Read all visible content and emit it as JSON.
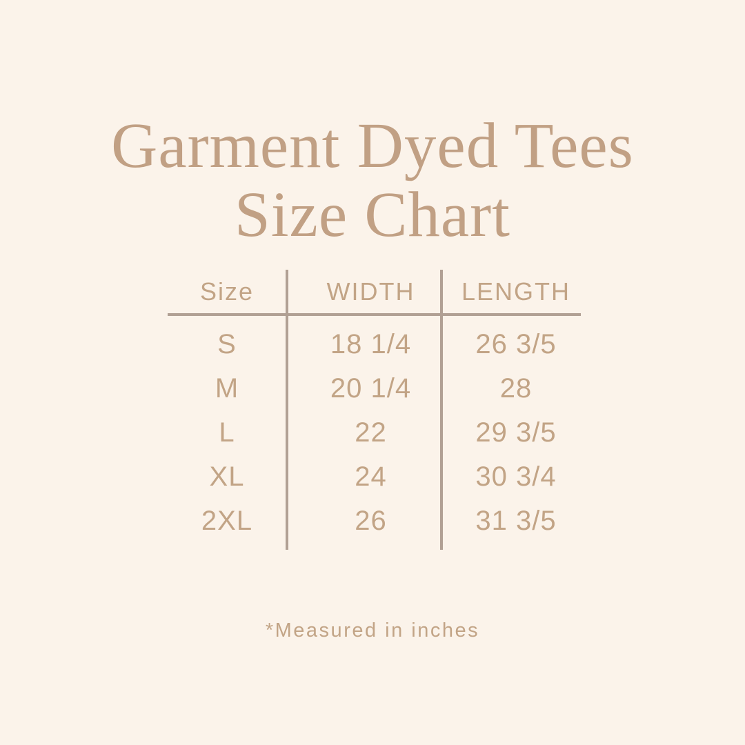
{
  "colors": {
    "background": "#fbf3ea",
    "title_text": "#c1a084",
    "table_text": "#c2a486",
    "divider_lines": "#b1a094"
  },
  "title": {
    "line1": "Garment Dyed Tees",
    "line2": "Size Chart"
  },
  "table": {
    "headers": [
      "Size",
      "WIDTH",
      "LENGTH"
    ],
    "rows": [
      {
        "size": "S",
        "width": "18 1/4",
        "length": "26 3/5"
      },
      {
        "size": "M",
        "width": "20 1/4",
        "length": "28"
      },
      {
        "size": "L",
        "width": "22",
        "length": "29 3/5"
      },
      {
        "size": "XL",
        "width": "24",
        "length": "30 3/4"
      },
      {
        "size": "2XL",
        "width": "26",
        "length": "31 3/5"
      }
    ]
  },
  "footnote": "*Measured in inches",
  "chart_data": {
    "type": "table",
    "title": "Garment Dyed Tees Size Chart",
    "columns": [
      "Size",
      "WIDTH",
      "LENGTH"
    ],
    "rows": [
      [
        "S",
        "18 1/4",
        "26 3/5"
      ],
      [
        "M",
        "20 1/4",
        "28"
      ],
      [
        "L",
        "22",
        "29 3/5"
      ],
      [
        "XL",
        "24",
        "30 3/4"
      ],
      [
        "2XL",
        "26",
        "31 3/5"
      ]
    ],
    "units_note": "*Measured in inches"
  }
}
